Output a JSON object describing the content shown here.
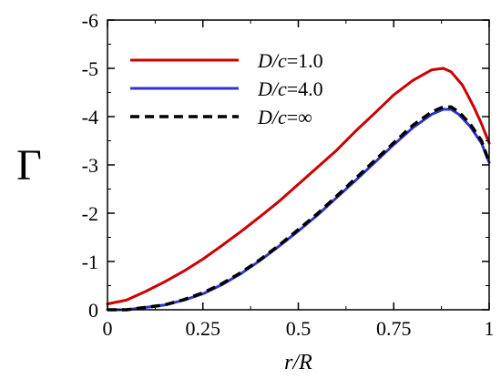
{
  "chart_data": {
    "type": "line",
    "xlabel": "r/R",
    "ylabel": "Γ",
    "xlim": [
      0,
      1
    ],
    "ylim": [
      0,
      -6
    ],
    "y_axis_inverted": true,
    "x_ticks": [
      0,
      0.25,
      0.5,
      0.75,
      1
    ],
    "x_tick_labels": [
      "0",
      "0.25",
      "0.5",
      "0.75",
      "1"
    ],
    "y_ticks": [
      0,
      -1,
      -2,
      -3,
      -4,
      -5,
      -6
    ],
    "y_tick_labels": [
      "0",
      "-1",
      "-2",
      "-3",
      "-4",
      "-5",
      "-6"
    ],
    "grid": false,
    "legend_position": "top-left",
    "series": [
      {
        "name": "D/c=1.0",
        "legend_prefix": "D/c",
        "legend_suffix": "=1.0",
        "color": "#cc0000",
        "dash": "solid",
        "x": [
          0,
          0.05,
          0.1,
          0.15,
          0.2,
          0.25,
          0.3,
          0.35,
          0.4,
          0.45,
          0.5,
          0.55,
          0.6,
          0.65,
          0.7,
          0.75,
          0.8,
          0.85,
          0.88,
          0.9,
          0.93,
          0.96,
          0.98,
          1.0
        ],
        "values": [
          -0.12,
          -0.2,
          -0.38,
          -0.58,
          -0.8,
          -1.05,
          -1.33,
          -1.62,
          -1.93,
          -2.25,
          -2.6,
          -2.95,
          -3.3,
          -3.7,
          -4.07,
          -4.45,
          -4.75,
          -4.97,
          -5.0,
          -4.93,
          -4.65,
          -4.2,
          -3.85,
          -3.45
        ]
      },
      {
        "name": "D/c=4.0",
        "legend_prefix": "D/c",
        "legend_suffix": "=4.0",
        "color": "#3333cc",
        "dash": "solid",
        "x": [
          0,
          0.05,
          0.1,
          0.15,
          0.2,
          0.25,
          0.3,
          0.35,
          0.4,
          0.45,
          0.5,
          0.55,
          0.6,
          0.65,
          0.7,
          0.75,
          0.8,
          0.85,
          0.88,
          0.9,
          0.92,
          0.95,
          0.98,
          1.0
        ],
        "values": [
          0,
          0,
          -0.05,
          -0.1,
          -0.2,
          -0.33,
          -0.52,
          -0.75,
          -1.02,
          -1.32,
          -1.63,
          -1.96,
          -2.32,
          -2.68,
          -3.05,
          -3.42,
          -3.77,
          -4.05,
          -4.15,
          -4.15,
          -4.05,
          -3.8,
          -3.45,
          -3.05
        ]
      },
      {
        "name": "D/c=∞",
        "legend_prefix": "D/c",
        "legend_suffix": "=∞",
        "color": "#000000",
        "dash": "dashed",
        "x": [
          0,
          0.05,
          0.1,
          0.15,
          0.2,
          0.25,
          0.3,
          0.35,
          0.4,
          0.45,
          0.5,
          0.55,
          0.6,
          0.65,
          0.7,
          0.75,
          0.8,
          0.85,
          0.88,
          0.9,
          0.92,
          0.95,
          0.98,
          1.0
        ],
        "values": [
          0,
          0,
          -0.05,
          -0.1,
          -0.21,
          -0.35,
          -0.54,
          -0.77,
          -1.04,
          -1.34,
          -1.66,
          -1.99,
          -2.35,
          -2.72,
          -3.09,
          -3.46,
          -3.82,
          -4.1,
          -4.2,
          -4.2,
          -4.1,
          -3.85,
          -3.5,
          -3.05
        ]
      }
    ]
  }
}
